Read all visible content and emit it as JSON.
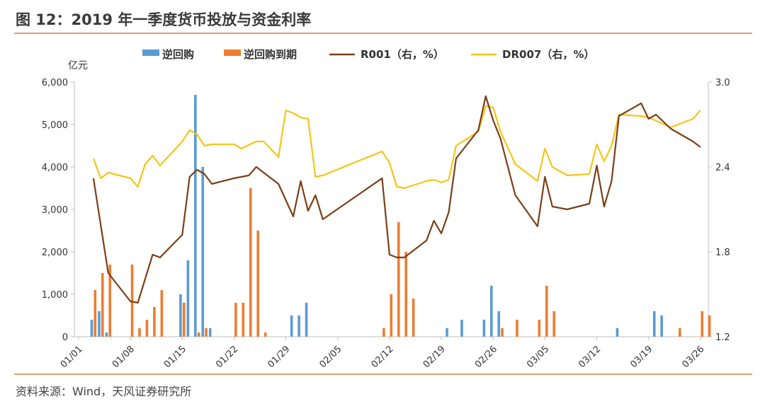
{
  "header": {
    "title": "图 12：2019 年一季度货币投放与资金利率",
    "source": "资料来源：Wind，天风证券研究所"
  },
  "chart_data": {
    "type": "bar+line",
    "y_left_label": "亿元",
    "ylim_left": [
      0,
      6000
    ],
    "ylim_right": [
      1.2,
      3.0
    ],
    "left_ticks": [
      "0",
      "1,000",
      "2,000",
      "3,000",
      "4,000",
      "5,000",
      "6,000"
    ],
    "right_ticks": [
      "1.2",
      "1.8",
      "2.4",
      "3.0"
    ],
    "x_ticks": [
      {
        "day": 0,
        "label": "01/01"
      },
      {
        "day": 7,
        "label": "01/08"
      },
      {
        "day": 14,
        "label": "01/15"
      },
      {
        "day": 21,
        "label": "01/22"
      },
      {
        "day": 28,
        "label": "01/29"
      },
      {
        "day": 35,
        "label": "02/05"
      },
      {
        "day": 42,
        "label": "02/12"
      },
      {
        "day": 49,
        "label": "02/19"
      },
      {
        "day": 56,
        "label": "02/26"
      },
      {
        "day": 63,
        "label": "03/05"
      },
      {
        "day": 70,
        "label": "03/12"
      },
      {
        "day": 77,
        "label": "03/19"
      },
      {
        "day": 84,
        "label": "03/26"
      }
    ],
    "legend": [
      "逆回购",
      "逆回购到期",
      "R001（右，%）",
      "DR007（右，%）"
    ],
    "colors": {
      "repo": "#5b9bd5",
      "maturity": "#ed7d31",
      "r001": "#7b3f17",
      "dr007": "#f5c518"
    },
    "repo": [
      [
        2,
        400
      ],
      [
        3,
        600
      ],
      [
        4,
        100
      ],
      [
        14,
        1000
      ],
      [
        15,
        1800
      ],
      [
        16,
        5700
      ],
      [
        17,
        4000
      ],
      [
        18,
        200
      ],
      [
        29,
        500
      ],
      [
        30,
        500
      ],
      [
        31,
        800
      ],
      [
        50,
        200
      ],
      [
        52,
        400
      ],
      [
        55,
        400
      ],
      [
        56,
        1200
      ],
      [
        57,
        600
      ],
      [
        73,
        200
      ],
      [
        78,
        600
      ],
      [
        79,
        500
      ]
    ],
    "maturity": [
      [
        2,
        1100
      ],
      [
        3,
        1500
      ],
      [
        4,
        1700
      ],
      [
        7,
        1700
      ],
      [
        8,
        200
      ],
      [
        9,
        400
      ],
      [
        10,
        700
      ],
      [
        11,
        1100
      ],
      [
        14,
        800
      ],
      [
        16,
        100
      ],
      [
        17,
        200
      ],
      [
        21,
        800
      ],
      [
        22,
        800
      ],
      [
        23,
        3500
      ],
      [
        24,
        2500
      ],
      [
        25,
        100
      ],
      [
        41,
        200
      ],
      [
        42,
        1000
      ],
      [
        43,
        2700
      ],
      [
        44,
        2000
      ],
      [
        45,
        900
      ],
      [
        57,
        200
      ],
      [
        59,
        400
      ],
      [
        62,
        400
      ],
      [
        63,
        1200
      ],
      [
        64,
        600
      ],
      [
        81,
        200
      ],
      [
        84,
        600
      ],
      [
        85,
        500
      ]
    ],
    "r001": [
      [
        2,
        2.32
      ],
      [
        4,
        1.65
      ],
      [
        7,
        1.45
      ],
      [
        8,
        1.44
      ],
      [
        10,
        1.78
      ],
      [
        11,
        1.76
      ],
      [
        14,
        1.92
      ],
      [
        15,
        2.33
      ],
      [
        16,
        2.38
      ],
      [
        17,
        2.35
      ],
      [
        18,
        2.28
      ],
      [
        21,
        2.32
      ],
      [
        22,
        2.33
      ],
      [
        23,
        2.34
      ],
      [
        24,
        2.4
      ],
      [
        27,
        2.28
      ],
      [
        29,
        2.05
      ],
      [
        30,
        2.3
      ],
      [
        31,
        2.09
      ],
      [
        32,
        2.2
      ],
      [
        33,
        2.03
      ],
      [
        41,
        2.32
      ],
      [
        42,
        1.78
      ],
      [
        43,
        1.76
      ],
      [
        44,
        1.76
      ],
      [
        47,
        1.88
      ],
      [
        48,
        2.02
      ],
      [
        49,
        1.93
      ],
      [
        50,
        2.08
      ],
      [
        51,
        2.46
      ],
      [
        54,
        2.66
      ],
      [
        55,
        2.9
      ],
      [
        56,
        2.73
      ],
      [
        57,
        2.6
      ],
      [
        59,
        2.2
      ],
      [
        62,
        1.98
      ],
      [
        63,
        2.33
      ],
      [
        64,
        2.12
      ],
      [
        66,
        2.1
      ],
      [
        69,
        2.14
      ],
      [
        70,
        2.41
      ],
      [
        71,
        2.12
      ],
      [
        72,
        2.3
      ],
      [
        73,
        2.76
      ],
      [
        76,
        2.85
      ],
      [
        77,
        2.74
      ],
      [
        78,
        2.77
      ],
      [
        80,
        2.67
      ],
      [
        83,
        2.58
      ],
      [
        84,
        2.54
      ]
    ],
    "dr007": [
      [
        2,
        2.46
      ],
      [
        3,
        2.32
      ],
      [
        4,
        2.36
      ],
      [
        7,
        2.32
      ],
      [
        8,
        2.26
      ],
      [
        9,
        2.42
      ],
      [
        10,
        2.48
      ],
      [
        11,
        2.41
      ],
      [
        14,
        2.58
      ],
      [
        15,
        2.66
      ],
      [
        16,
        2.63
      ],
      [
        17,
        2.55
      ],
      [
        18,
        2.56
      ],
      [
        21,
        2.56
      ],
      [
        22,
        2.53
      ],
      [
        24,
        2.58
      ],
      [
        25,
        2.58
      ],
      [
        27,
        2.47
      ],
      [
        28,
        2.8
      ],
      [
        29,
        2.78
      ],
      [
        30,
        2.75
      ],
      [
        31,
        2.74
      ],
      [
        32,
        2.33
      ],
      [
        33,
        2.34
      ],
      [
        41,
        2.51
      ],
      [
        42,
        2.43
      ],
      [
        43,
        2.26
      ],
      [
        44,
        2.25
      ],
      [
        47,
        2.3
      ],
      [
        48,
        2.31
      ],
      [
        49,
        2.29
      ],
      [
        50,
        2.31
      ],
      [
        51,
        2.55
      ],
      [
        54,
        2.65
      ],
      [
        55,
        2.83
      ],
      [
        56,
        2.82
      ],
      [
        57,
        2.65
      ],
      [
        59,
        2.42
      ],
      [
        62,
        2.3
      ],
      [
        63,
        2.53
      ],
      [
        64,
        2.4
      ],
      [
        66,
        2.34
      ],
      [
        69,
        2.35
      ],
      [
        70,
        2.56
      ],
      [
        71,
        2.44
      ],
      [
        72,
        2.55
      ],
      [
        73,
        2.77
      ],
      [
        76,
        2.76
      ],
      [
        77,
        2.75
      ],
      [
        80,
        2.68
      ],
      [
        83,
        2.74
      ],
      [
        84,
        2.8
      ]
    ]
  }
}
